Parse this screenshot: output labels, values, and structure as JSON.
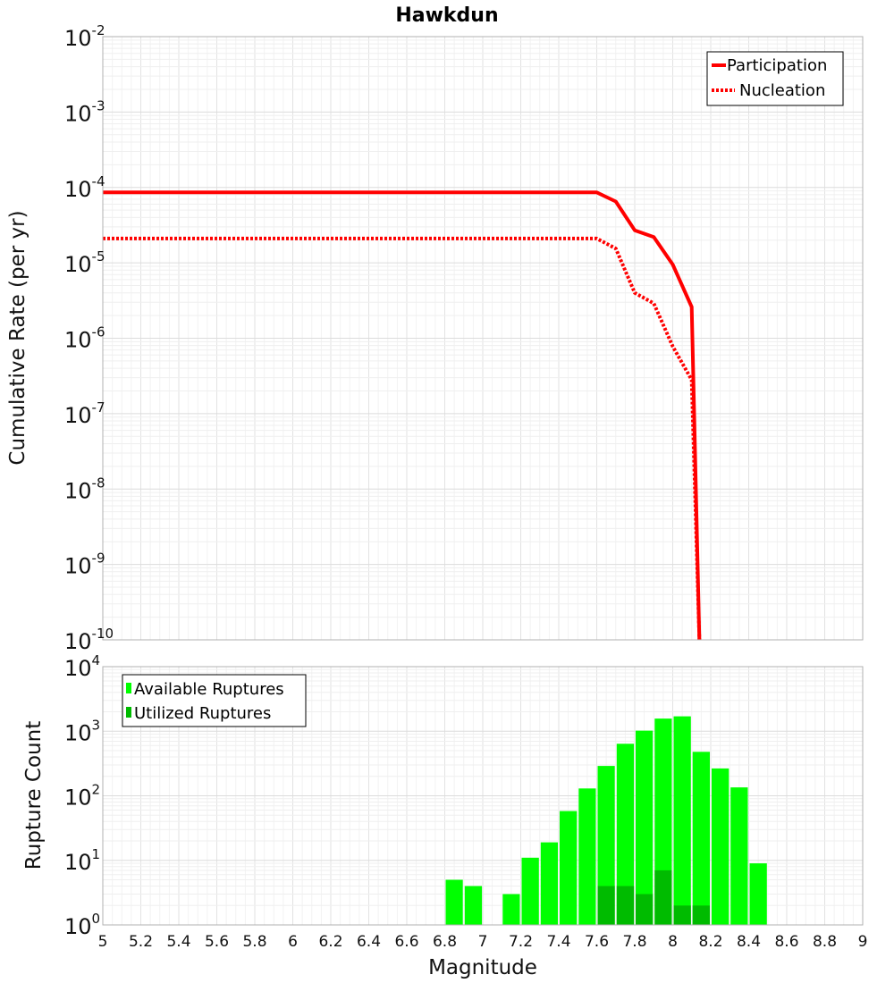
{
  "chart_data": [
    {
      "type": "line",
      "title": "Hawkdun",
      "xlabel": "",
      "ylabel": "Cumulative Rate (per yr)",
      "yscale": "log",
      "xlim": [
        5,
        9
      ],
      "ylim": [
        1e-10,
        0.01
      ],
      "grid": true,
      "legend_position": "top-right",
      "y_tick_labels": [
        {
          "base": "10",
          "exp": "-2"
        },
        {
          "base": "10",
          "exp": "-3"
        },
        {
          "base": "10",
          "exp": "-4"
        },
        {
          "base": "10",
          "exp": "-5"
        },
        {
          "base": "10",
          "exp": "-6"
        },
        {
          "base": "10",
          "exp": "-7"
        },
        {
          "base": "10",
          "exp": "-8"
        },
        {
          "base": "10",
          "exp": "-9"
        },
        {
          "base": "10",
          "exp": "-10"
        }
      ],
      "series": [
        {
          "name": "Participation",
          "style": "solid",
          "color": "#ff0000",
          "x": [
            5.0,
            7.6,
            7.7,
            7.8,
            7.9,
            8.0,
            8.1,
            8.14
          ],
          "y": [
            8.6e-05,
            8.6e-05,
            6.5e-05,
            2.7e-05,
            2.2e-05,
            9.5e-06,
            2.6e-06,
            1e-10
          ]
        },
        {
          "name": "Nucleation",
          "style": "dotted",
          "color": "#ff0000",
          "x": [
            5.0,
            7.6,
            7.7,
            7.8,
            7.9,
            8.0,
            8.1,
            8.14
          ],
          "y": [
            2.1e-05,
            2.1e-05,
            1.55e-05,
            4e-06,
            2.9e-06,
            7.8e-07,
            2.8e-07,
            1e-10
          ]
        }
      ]
    },
    {
      "type": "bar",
      "title": "",
      "xlabel": "Magnitude",
      "ylabel": "Rupture Count",
      "yscale": "log",
      "xlim": [
        5,
        9
      ],
      "ylim": [
        1,
        10000
      ],
      "grid": true,
      "legend_position": "top-left",
      "bar_width": 0.1,
      "x_tick_labels": [
        "5",
        "5.2",
        "5.4",
        "5.6",
        "5.8",
        "6",
        "6.2",
        "6.4",
        "6.6",
        "6.8",
        "7",
        "7.2",
        "7.4",
        "7.6",
        "7.8",
        "8",
        "8.2",
        "8.4",
        "8.6",
        "8.8",
        "9"
      ],
      "y_tick_labels": [
        {
          "base": "10",
          "exp": "4"
        },
        {
          "base": "10",
          "exp": "3"
        },
        {
          "base": "10",
          "exp": "2"
        },
        {
          "base": "10",
          "exp": "1"
        },
        {
          "base": "10",
          "exp": "0"
        }
      ],
      "series": [
        {
          "name": "Available Ruptures",
          "color": "#00ff00",
          "x": [
            6.85,
            6.95,
            7.15,
            7.25,
            7.35,
            7.45,
            7.55,
            7.65,
            7.75,
            7.85,
            7.95,
            8.05,
            8.15,
            8.25,
            8.35,
            8.45
          ],
          "values": [
            5,
            4,
            3,
            11,
            19,
            58,
            130,
            290,
            640,
            1020,
            1570,
            1700,
            480,
            265,
            135,
            9
          ]
        },
        {
          "name": "Utilized Ruptures",
          "color": "#00bb00",
          "x": [
            7.65,
            7.75,
            7.85,
            7.95,
            8.05,
            8.15
          ],
          "values": [
            4,
            4,
            3,
            7,
            2,
            2
          ]
        }
      ]
    }
  ]
}
